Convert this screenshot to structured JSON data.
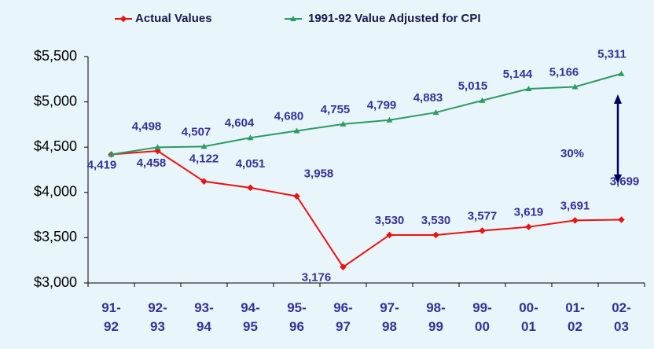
{
  "chart_data": {
    "type": "line",
    "categories": [
      "91-92",
      "92-93",
      "93-94",
      "94-95",
      "95-96",
      "96-97",
      "97-98",
      "98-99",
      "99-00",
      "00-01",
      "01-02",
      "02-03"
    ],
    "series": [
      {
        "name": "Actual Values",
        "color": "#ee1111",
        "values": [
          4419,
          4458,
          4122,
          4051,
          3958,
          3176,
          3530,
          3530,
          3577,
          3619,
          3691,
          3699
        ],
        "value_labels": [
          "4,419",
          "4,458",
          "4,122",
          "4,051",
          "3,958",
          "3,176",
          "3,530",
          "3,530",
          "3,577",
          "3,619",
          "3,691",
          "3,699"
        ]
      },
      {
        "name": "1991-92 Value Adjusted for CPI",
        "color": "#2e9a64",
        "values": [
          4419,
          4498,
          4507,
          4604,
          4680,
          4755,
          4799,
          4883,
          5015,
          5144,
          5166,
          5311
        ],
        "value_labels": [
          null,
          "4,498",
          "4,507",
          "4,604",
          "4,680",
          "4,755",
          "4,799",
          "4,883",
          "5,015",
          "5,144",
          "5,166",
          "5,311"
        ]
      }
    ],
    "ylim": [
      3000,
      5500
    ],
    "yticks": [
      {
        "value": 3000,
        "label": "$3,000"
      },
      {
        "value": 3500,
        "label": "$3,500"
      },
      {
        "value": 4000,
        "label": "$4,000"
      },
      {
        "value": 4500,
        "label": "$4,500"
      },
      {
        "value": 5000,
        "label": "$5,000"
      },
      {
        "value": 5500,
        "label": "$5,500"
      }
    ],
    "annotation": "30%",
    "legend": "top"
  }
}
